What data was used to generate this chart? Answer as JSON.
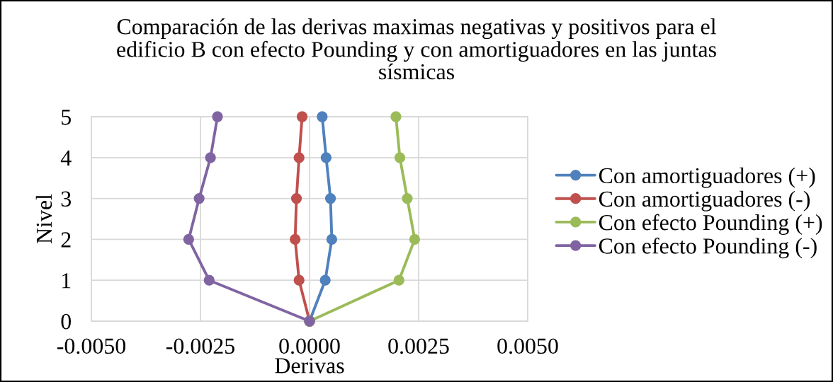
{
  "chart_data": {
    "type": "line",
    "title": "Comparación de las derivas maximas negativas y positivos para el edificio B con efecto Pounding y con amortiguadores en las juntas sísmicas",
    "xlabel": "Derivas",
    "ylabel": "Nivel",
    "xlim": [
      -0.005,
      0.005
    ],
    "xticks": [
      {
        "value": -0.005,
        "label": "-0.0050"
      },
      -0.0025,
      {
        "value": 0,
        "label": "0.0000"
      },
      0.0025,
      {
        "value": 0.005,
        "label": "0.0050"
      }
    ],
    "ylim": [
      0,
      5
    ],
    "yticks": [
      0,
      1,
      2,
      3,
      4,
      5
    ],
    "grid": true,
    "legend": "right",
    "marker": "circle",
    "line_style": "solid",
    "series": [
      {
        "name": "Con amortiguadores (+)",
        "color": "#4f81bd",
        "x": [
          0,
          0.00036,
          0.00051,
          0.00048,
          0.00038,
          0.00029
        ],
        "values": [
          0,
          1,
          2,
          3,
          4,
          5
        ]
      },
      {
        "name": "Con amortiguadores (-)",
        "color": "#c0504d",
        "x": [
          0,
          -0.00024,
          -0.00033,
          -0.0003,
          -0.00024,
          -0.00017
        ],
        "values": [
          0,
          1,
          2,
          3,
          4,
          5
        ]
      },
      {
        "name": "Con efecto Pounding (+)",
        "color": "#9bbb59",
        "x": [
          0,
          0.00205,
          0.00241,
          0.00224,
          0.00207,
          0.00198
        ],
        "values": [
          0,
          1,
          2,
          3,
          4,
          5
        ]
      },
      {
        "name": "Con efecto Pounding (-)",
        "color": "#8064a2",
        "x": [
          0,
          -0.0023,
          -0.00277,
          -0.00253,
          -0.00227,
          -0.00211
        ],
        "values": [
          0,
          1,
          2,
          3,
          4,
          5
        ]
      }
    ]
  }
}
